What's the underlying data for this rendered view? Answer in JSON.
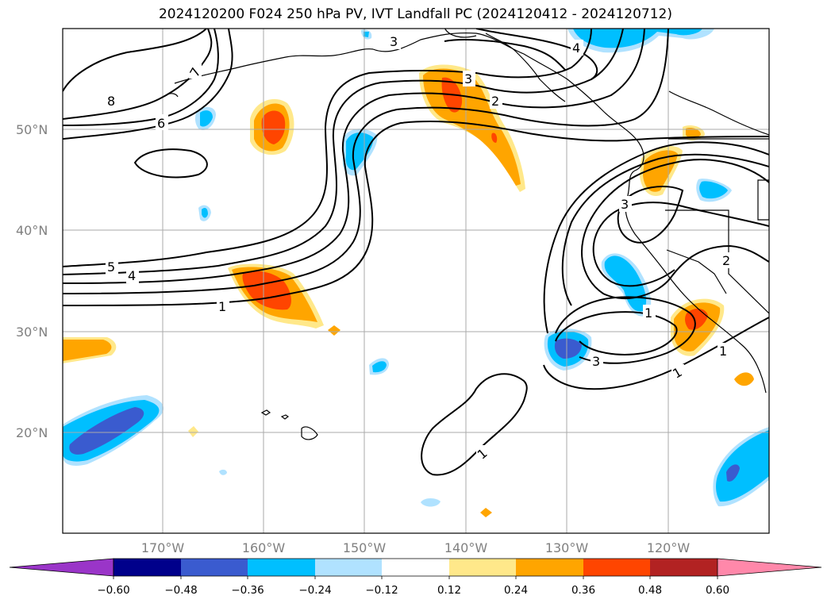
{
  "title": "2024120200 F024 250 hPa PV, IVT Landfall PC (2024120412 - 2024120712)",
  "map": {
    "lat_labels": [
      "50°N",
      "40°N",
      "30°N",
      "20°N"
    ],
    "lon_labels": [
      "170°W",
      "160°W",
      "150°W",
      "140°W",
      "130°W",
      "120°W"
    ],
    "gridlines": true,
    "colors": {
      "dark_purple": "#9a35c8",
      "navy": "#00008b",
      "royal_blue": "#3a5bcf",
      "deep_sky_blue": "#00bfff",
      "light_blue": "#b0e2ff",
      "white": "#ffffff",
      "light_yellow": "#ffe88a",
      "orange": "#ffa500",
      "orange_red": "#ff4500",
      "firebrick": "#b22222",
      "pink": "#ff88aa"
    },
    "contour_labels": [
      "8",
      "7",
      "6",
      "5",
      "4",
      "1",
      "3",
      "2",
      "4",
      "3",
      "2",
      "3",
      "1",
      "1",
      "3",
      "1",
      "1"
    ]
  },
  "colorbar": {
    "ticks": [
      "−0.60",
      "−0.48",
      "−0.36",
      "−0.24",
      "−0.12",
      "0.12",
      "0.24",
      "0.36",
      "0.48",
      "0.60"
    ],
    "extend": "both"
  }
}
